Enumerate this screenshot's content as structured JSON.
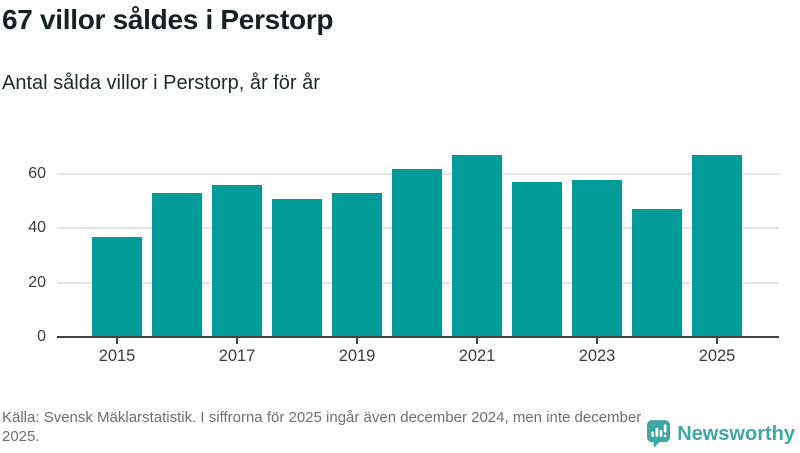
{
  "header": {
    "title": "67 villor såldes i Perstorp",
    "subtitle": "Antal sålda villor i Perstorp, år för år"
  },
  "chart_data": {
    "type": "bar",
    "title": "67 villor såldes i Perstorp",
    "subtitle": "Antal sålda villor i Perstorp, år för år",
    "categories": [
      "2015",
      "2016",
      "2017",
      "2018",
      "2019",
      "2020",
      "2021",
      "2022",
      "2023",
      "2024",
      "2025"
    ],
    "values": [
      37,
      53,
      56,
      51,
      53,
      62,
      67,
      57,
      58,
      47,
      67
    ],
    "xlabel": "",
    "ylabel": "",
    "ylim": [
      0,
      70
    ],
    "yticks": [
      0,
      20,
      40,
      60
    ],
    "xtick_labels": [
      "2015",
      "2017",
      "2019",
      "2021",
      "2023",
      "2025"
    ],
    "grid": true,
    "legend": false,
    "bar_color": "#019b9a"
  },
  "footer": {
    "source_text": "Källa: Svensk Mäklarstatistik. I siffrorna för 2025 ingår även december 2024, men inte december 2025.",
    "logo_text": "Newsworthy"
  },
  "colors": {
    "bar": "#019b9a",
    "logo_teal": "#3ea8a4",
    "axis": "#424242",
    "gridline": "#e4e4e4",
    "tick_label": "#3c3c3c",
    "footer_text": "#6f6f77",
    "title_text": "#182121",
    "background": "#ffffff"
  }
}
